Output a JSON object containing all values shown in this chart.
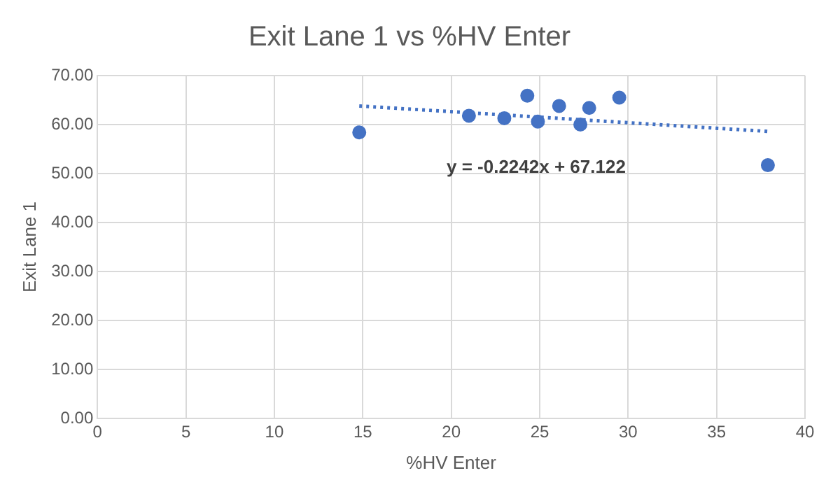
{
  "chart_data": {
    "type": "scatter",
    "title": "Exit Lane 1 vs %HV Enter",
    "xlabel": "%HV Enter",
    "ylabel": "Exit Lane 1",
    "xlim": [
      0,
      40
    ],
    "xticks": [
      0,
      5,
      10,
      15,
      20,
      25,
      30,
      35,
      40
    ],
    "ylim": [
      0,
      70
    ],
    "yticks": [
      {
        "value": 0,
        "label": "0.00"
      },
      {
        "value": 10,
        "label": "10.00"
      },
      {
        "value": 20,
        "label": "20.00"
      },
      {
        "value": 30,
        "label": "30.00"
      },
      {
        "value": 40,
        "label": "40.00"
      },
      {
        "value": 50,
        "label": "50.00"
      },
      {
        "value": 60,
        "label": "60.00"
      },
      {
        "value": 70,
        "label": "70.00"
      }
    ],
    "grid": true,
    "legend": false,
    "marker": "circle",
    "series": [
      {
        "color": "#4472c4",
        "x": [
          14.8,
          21.0,
          23.0,
          24.3,
          24.9,
          26.1,
          27.3,
          27.8,
          29.5,
          37.9
        ],
        "values": [
          58.4,
          61.8,
          61.3,
          65.9,
          60.6,
          63.8,
          60.0,
          63.4,
          65.5,
          51.7
        ]
      },
      {
        "type": "line",
        "color": "#4472c4",
        "line_style": "dotted",
        "marker": "none",
        "x": [
          14.8,
          37.9
        ],
        "values": [
          63.8,
          58.6
        ]
      }
    ],
    "annotations": [
      "y = -0.2242x + 67.122"
    ]
  }
}
